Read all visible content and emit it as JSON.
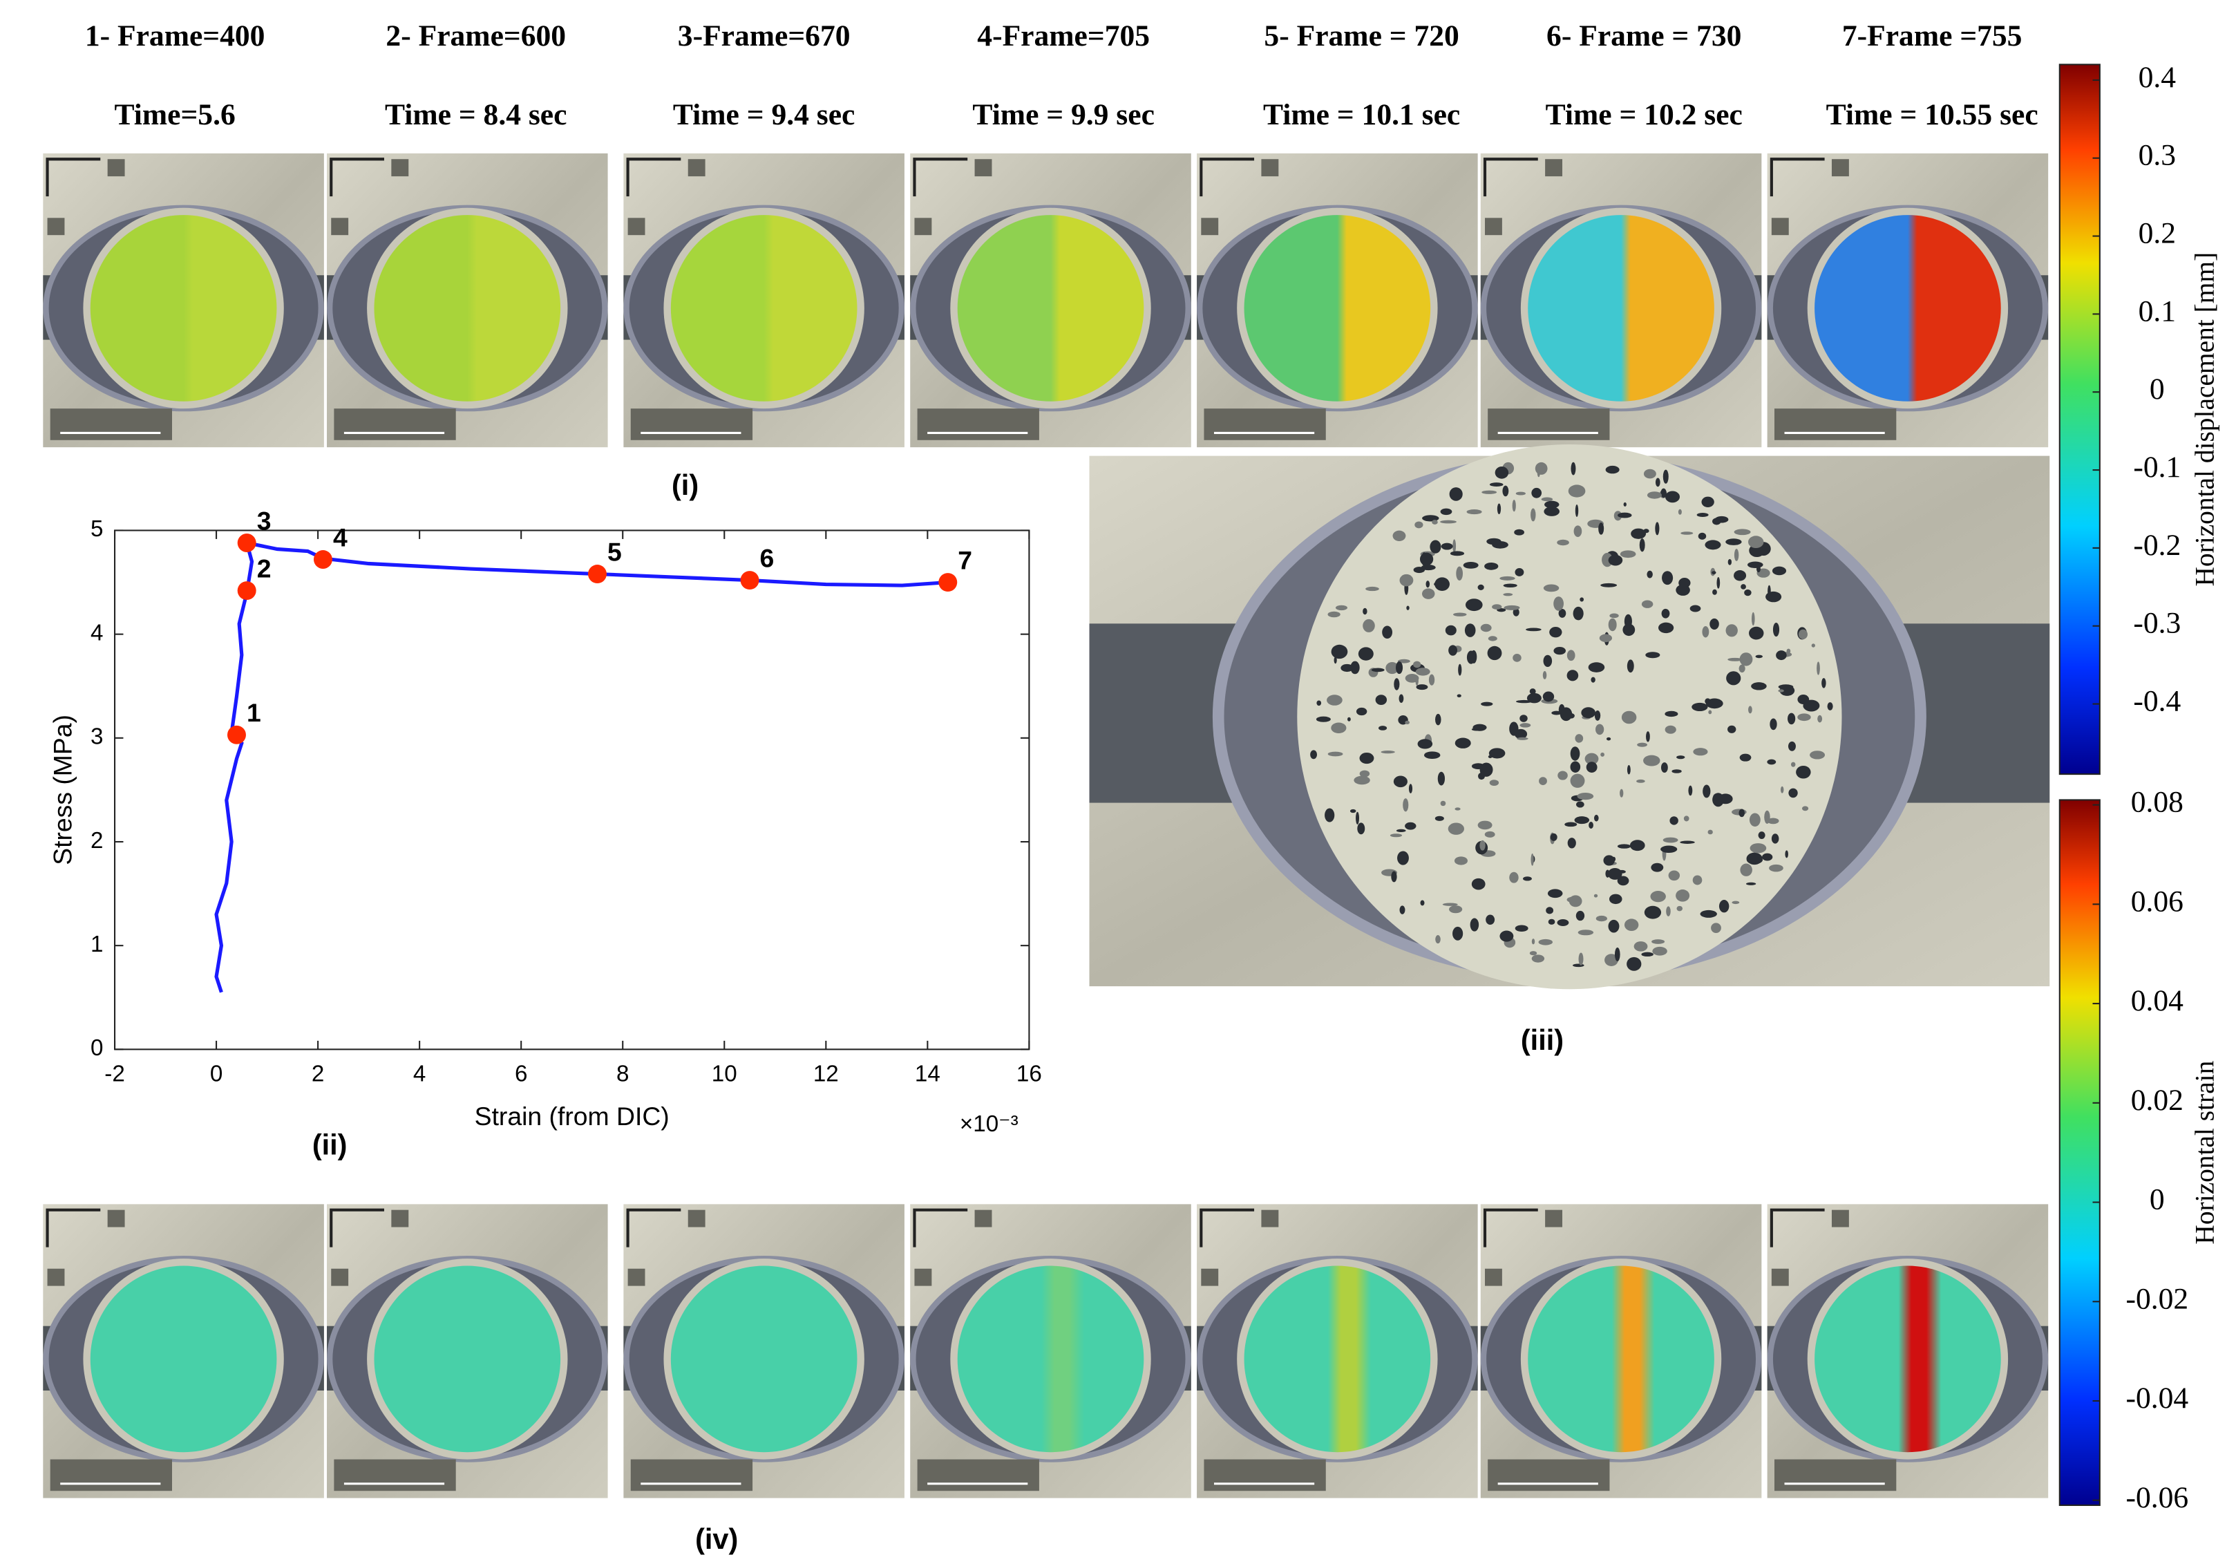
{
  "frames": [
    {
      "label": "1- Frame=400",
      "time": "Time=5.6"
    },
    {
      "label": "2- Frame=600",
      "time": "Time = 8.4 sec"
    },
    {
      "label": "3-Frame=670",
      "time": "Time = 9.4 sec"
    },
    {
      "label": "4-Frame=705",
      "time": "Time = 9.9 sec"
    },
    {
      "label": "5- Frame = 720",
      "time": "Time = 10.1 sec"
    },
    {
      "label": "6- Frame = 730",
      "time": "Time = 10.2 sec"
    },
    {
      "label": "7-Frame =755",
      "time": "Time = 10.55 sec"
    }
  ],
  "panel_labels": [
    "(i)",
    "(ii)",
    "(iii)",
    "(iv)"
  ],
  "chart_data": {
    "type": "line",
    "xlabel": "Strain (from DIC)",
    "ylabel": "Stress (MPa)",
    "x_multiplier": "×10⁻³",
    "xlim": [
      -2,
      16
    ],
    "xticks": [
      -2,
      0,
      2,
      4,
      6,
      8,
      10,
      12,
      14,
      16
    ],
    "ylim": [
      0,
      5
    ],
    "yticks": [
      0,
      1,
      2,
      3,
      4,
      5
    ],
    "x": [
      0.1,
      0,
      0.1,
      0,
      0.2,
      0.3,
      0.2,
      0.4,
      0.5,
      0.3,
      0.4,
      0.5,
      0.45,
      0.6,
      0.7,
      0.6,
      1.2,
      1.8,
      2.1,
      3,
      5,
      7.5,
      9,
      10.5,
      12,
      13.5,
      14.4
    ],
    "series": [
      {
        "color": "#1a1aff",
        "values": [
          0.55,
          0.7,
          1.0,
          1.3,
          1.6,
          2.0,
          2.4,
          2.8,
          2.95,
          3.05,
          3.4,
          3.8,
          4.1,
          4.4,
          4.7,
          4.88,
          4.82,
          4.8,
          4.73,
          4.68,
          4.63,
          4.58,
          4.55,
          4.52,
          4.48,
          4.47,
          4.5
        ]
      }
    ],
    "points": {
      "color": "#ff2a00",
      "labels": [
        "1",
        "2",
        "3",
        "4",
        "5",
        "6",
        "7"
      ],
      "x": [
        0.4,
        0.6,
        0.6,
        2.1,
        7.5,
        10.5,
        14.4
      ],
      "y": [
        3.03,
        4.42,
        4.88,
        4.72,
        4.58,
        4.52,
        4.5
      ]
    }
  },
  "colorbars": [
    {
      "label": "Horizontal displacement [mm]",
      "lim": [
        -0.49,
        0.42
      ],
      "ticks": [
        0.4,
        0.3,
        0.2,
        0.1,
        0,
        -0.1,
        -0.2,
        -0.3,
        -0.4
      ]
    },
    {
      "label": "Horizontal strain",
      "lim": [
        -0.061,
        0.081
      ],
      "ticks": [
        0.08,
        0.06,
        0.04,
        0.02,
        0,
        -0.02,
        -0.04,
        -0.06
      ]
    }
  ]
}
